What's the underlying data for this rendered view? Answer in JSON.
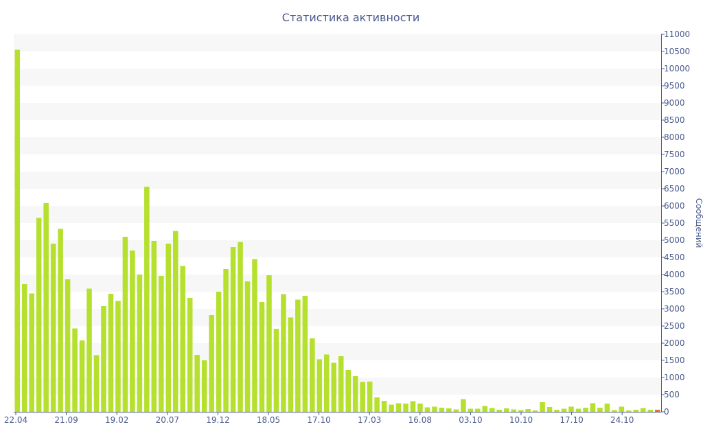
{
  "chart_data": {
    "type": "bar",
    "title": "Статистика активности",
    "ylabel": "Сообщений",
    "xlabel": "",
    "ylim": [
      0,
      11000
    ],
    "ytick_step": 500,
    "y_axis_side": "right",
    "grid": "alternating horizontal bands",
    "x_tick_labels": [
      "22.04",
      "21.09",
      "19.02",
      "20.07",
      "19.12",
      "18.05",
      "17.10",
      "17.03",
      "16.08",
      "03.10",
      "10.10",
      "17.10",
      "24.10"
    ],
    "values": [
      10550,
      3720,
      3450,
      5650,
      6080,
      4900,
      5330,
      3860,
      2430,
      2080,
      3590,
      1650,
      3080,
      3440,
      3230,
      5100,
      4700,
      4000,
      6560,
      4980,
      3960,
      4900,
      5270,
      4250,
      3320,
      1660,
      1500,
      2820,
      3500,
      4160,
      4800,
      4950,
      3800,
      4450,
      3200,
      3980,
      2420,
      3430,
      2750,
      3270,
      3380,
      2140,
      1530,
      1670,
      1430,
      1620,
      1220,
      1040,
      870,
      880,
      420,
      320,
      210,
      250,
      240,
      310,
      240,
      130,
      150,
      120,
      100,
      70,
      370,
      90,
      90,
      170,
      110,
      60,
      100,
      70,
      50,
      80,
      40,
      280,
      140,
      60,
      90,
      150,
      90,
      120,
      250,
      120,
      240,
      50,
      150,
      40,
      60,
      110,
      60,
      60
    ],
    "colors": {
      "bar": "#b5e02e",
      "last_bar": "#e8702a",
      "text": "#4a5a8c",
      "axis": "#4a5a8c",
      "band": "#f7f7f7"
    }
  }
}
